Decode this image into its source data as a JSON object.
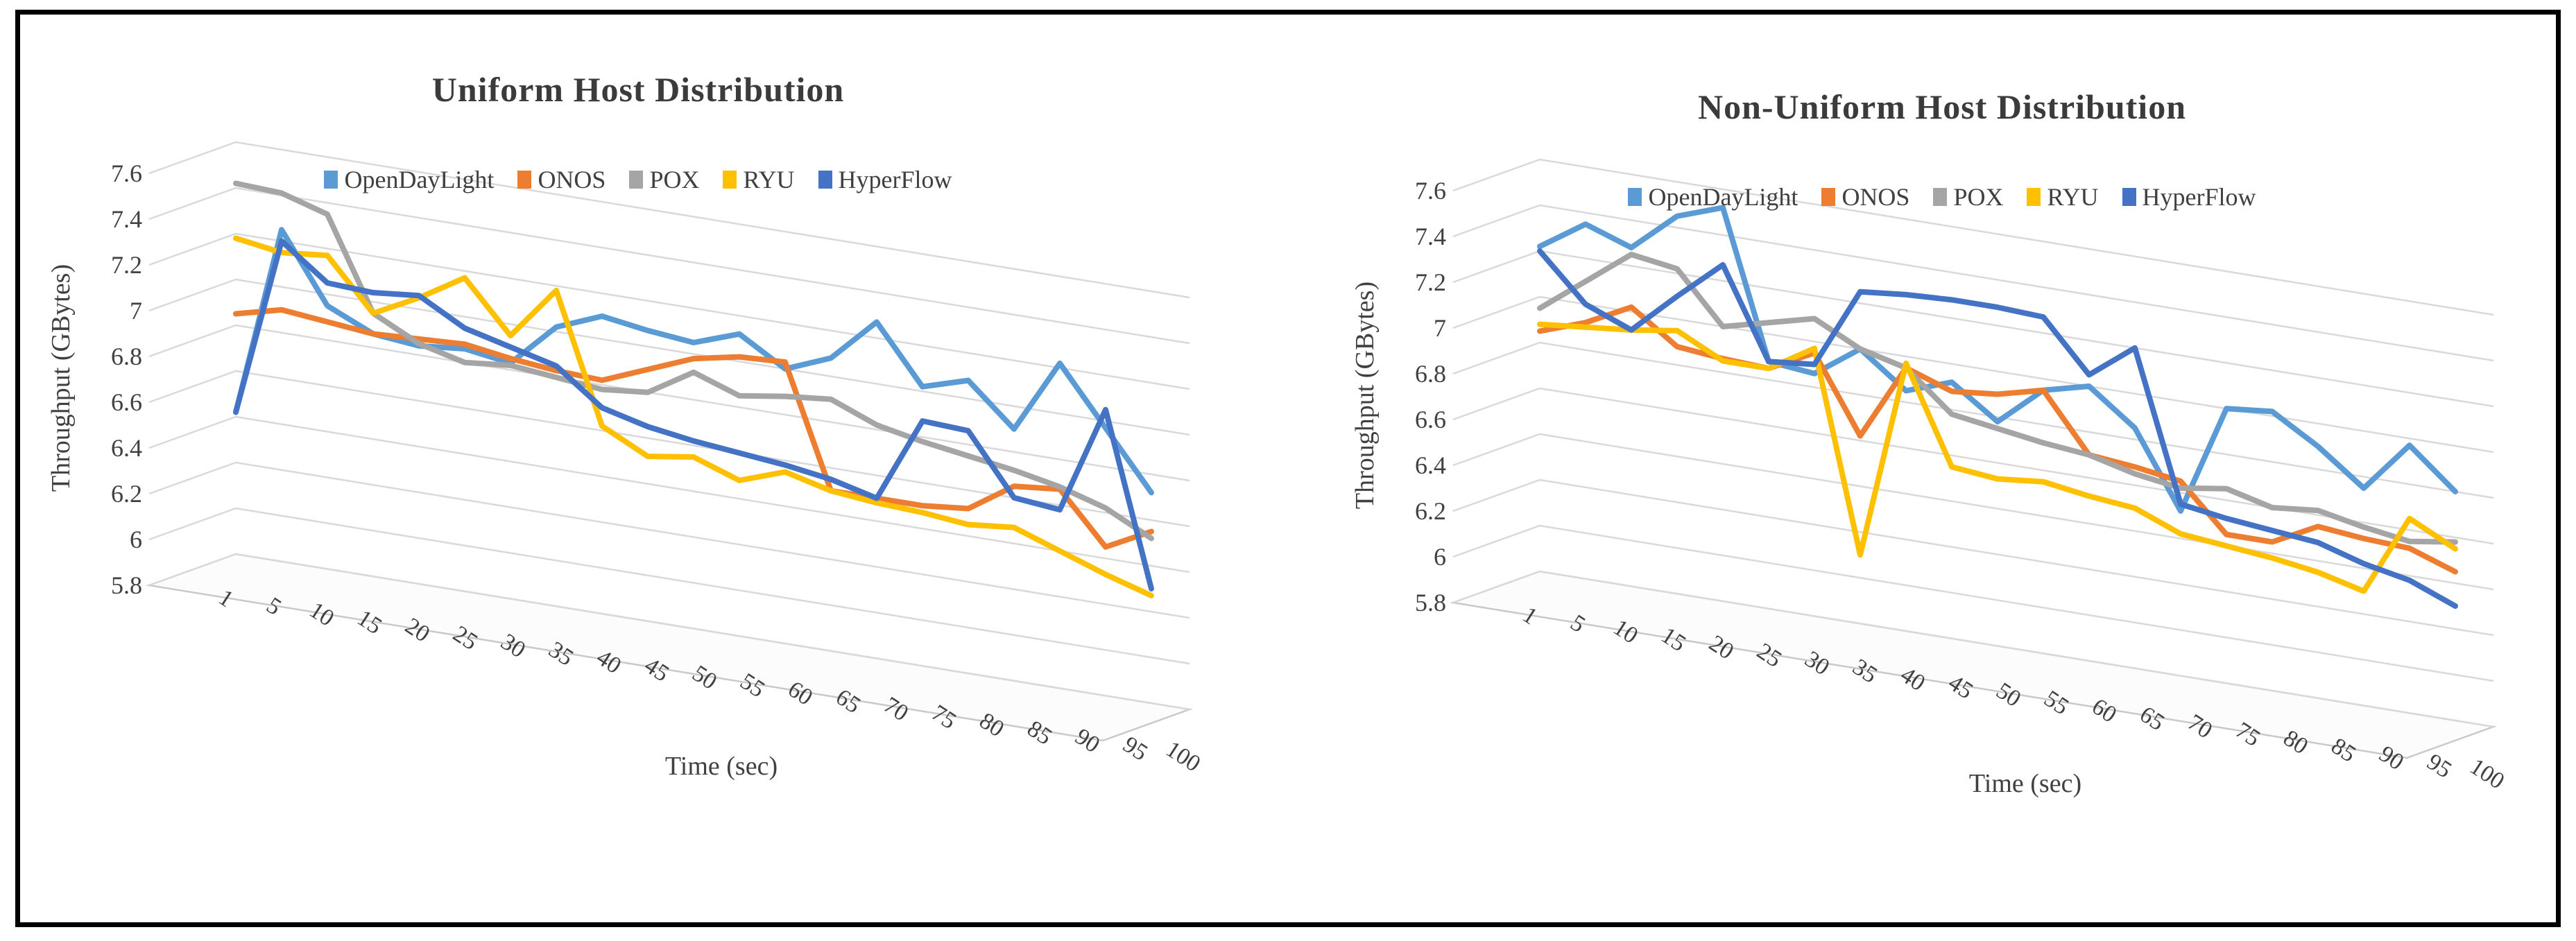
{
  "figure": {
    "background_color": "#ffffff",
    "border_color": "#000000"
  },
  "chart_data": [
    {
      "type": "line",
      "projection": "3d-oblique",
      "title": "Uniform Host Distribution",
      "x_axis_title": "Time (sec)",
      "y_axis_title": "Throughput (GBytes)",
      "ylim": [
        5.8,
        7.6
      ],
      "y_tick_labels": [
        "7.6",
        "7.4",
        "7.2",
        "7",
        "6.8",
        "6.6",
        "6.4",
        "6.2",
        "6",
        "5.8"
      ],
      "grid": true,
      "legend_position": "top",
      "categories": [
        1,
        5,
        10,
        15,
        20,
        25,
        30,
        35,
        40,
        45,
        50,
        55,
        60,
        65,
        70,
        75,
        80,
        85,
        90,
        95,
        100
      ],
      "series": [
        {
          "name": "OpenDayLight",
          "color": "#5B9BD5",
          "values": [
            6.42,
            7.25,
            6.95,
            6.86,
            6.84,
            6.86,
            6.83,
            7.02,
            7.1,
            7.07,
            7.05,
            7.12,
            7.0,
            7.08,
            7.27,
            7.02,
            7.08,
            6.9,
            7.22,
            6.97,
            6.72
          ]
        },
        {
          "name": "ONOS",
          "color": "#ED7D31",
          "values": [
            6.85,
            6.9,
            6.88,
            6.86,
            6.87,
            6.88,
            6.85,
            6.83,
            6.82,
            6.9,
            6.98,
            7.02,
            7.03,
            6.5,
            6.5,
            6.5,
            6.52,
            6.65,
            6.67,
            6.45,
            6.55
          ]
        },
        {
          "name": "POX",
          "color": "#A5A5A5",
          "values": [
            7.42,
            7.41,
            7.35,
            6.95,
            6.85,
            6.8,
            6.82,
            6.8,
            6.78,
            6.8,
            6.92,
            6.85,
            6.88,
            6.9,
            6.82,
            6.78,
            6.75,
            6.72,
            6.68,
            6.62,
            6.52
          ]
        },
        {
          "name": "RYU",
          "color": "#FFC000",
          "values": [
            7.18,
            7.15,
            7.17,
            6.95,
            7.05,
            7.17,
            6.95,
            7.18,
            6.62,
            6.52,
            6.55,
            6.48,
            6.55,
            6.5,
            6.48,
            6.47,
            6.45,
            6.47,
            6.4,
            6.33,
            6.27
          ]
        },
        {
          "name": "HyperFlow",
          "color": "#4472C4",
          "values": [
            6.42,
            7.2,
            7.05,
            7.04,
            7.06,
            6.95,
            6.9,
            6.85,
            6.7,
            6.65,
            6.62,
            6.6,
            6.58,
            6.55,
            6.5,
            6.87,
            6.86,
            6.6,
            6.58,
            7.05,
            6.3
          ]
        }
      ]
    },
    {
      "type": "line",
      "projection": "3d-oblique",
      "title": "Non-Uniform Host Distribution",
      "x_axis_title": "Time (sec)",
      "y_axis_title": "Throughput (GBytes)",
      "ylim": [
        5.8,
        7.6
      ],
      "y_tick_labels": [
        "7.6",
        "7.4",
        "7.2",
        "7",
        "6.8",
        "6.6",
        "6.4",
        "6.2",
        "6",
        "5.8"
      ],
      "grid": true,
      "legend_position": "top",
      "categories": [
        1,
        5,
        10,
        15,
        20,
        25,
        30,
        35,
        40,
        45,
        50,
        55,
        60,
        65,
        70,
        75,
        80,
        85,
        90,
        95,
        100
      ],
      "series": [
        {
          "name": "OpenDayLight",
          "color": "#5B9BD5",
          "values": [
            7.22,
            7.35,
            7.28,
            7.45,
            7.52,
            6.88,
            6.86,
            7.0,
            6.85,
            6.92,
            6.78,
            6.95,
            7.0,
            6.85,
            6.52,
            7.0,
            7.02,
            6.9,
            6.75,
            6.97,
            6.8
          ]
        },
        {
          "name": "ONOS",
          "color": "#ED7D31",
          "values": [
            6.85,
            6.92,
            7.02,
            6.88,
            6.86,
            6.85,
            6.95,
            6.62,
            6.95,
            6.88,
            6.9,
            6.95,
            6.7,
            6.68,
            6.65,
            6.45,
            6.45,
            6.55,
            6.53,
            6.52,
            6.45
          ]
        },
        {
          "name": "POX",
          "color": "#A5A5A5",
          "values": [
            6.95,
            7.1,
            7.25,
            7.22,
            7.0,
            7.05,
            7.1,
            7.0,
            6.95,
            6.78,
            6.75,
            6.72,
            6.7,
            6.65,
            6.62,
            6.65,
            6.6,
            6.62,
            6.58,
            6.55,
            6.58
          ]
        },
        {
          "name": "RYU",
          "color": "#FFC000",
          "values": [
            6.88,
            6.9,
            6.92,
            6.95,
            6.85,
            6.85,
            6.97,
            6.1,
            6.97,
            6.55,
            6.53,
            6.55,
            6.52,
            6.5,
            6.42,
            6.4,
            6.38,
            6.35,
            6.3,
            6.65,
            6.55
          ]
        },
        {
          "name": "HyperFlow",
          "color": "#4472C4",
          "values": [
            7.2,
            7.0,
            6.92,
            7.1,
            7.27,
            6.88,
            6.9,
            7.25,
            7.27,
            7.28,
            7.28,
            7.27,
            7.05,
            7.2,
            6.55,
            6.52,
            6.5,
            6.48,
            6.42,
            6.38,
            6.3
          ]
        }
      ]
    }
  ]
}
